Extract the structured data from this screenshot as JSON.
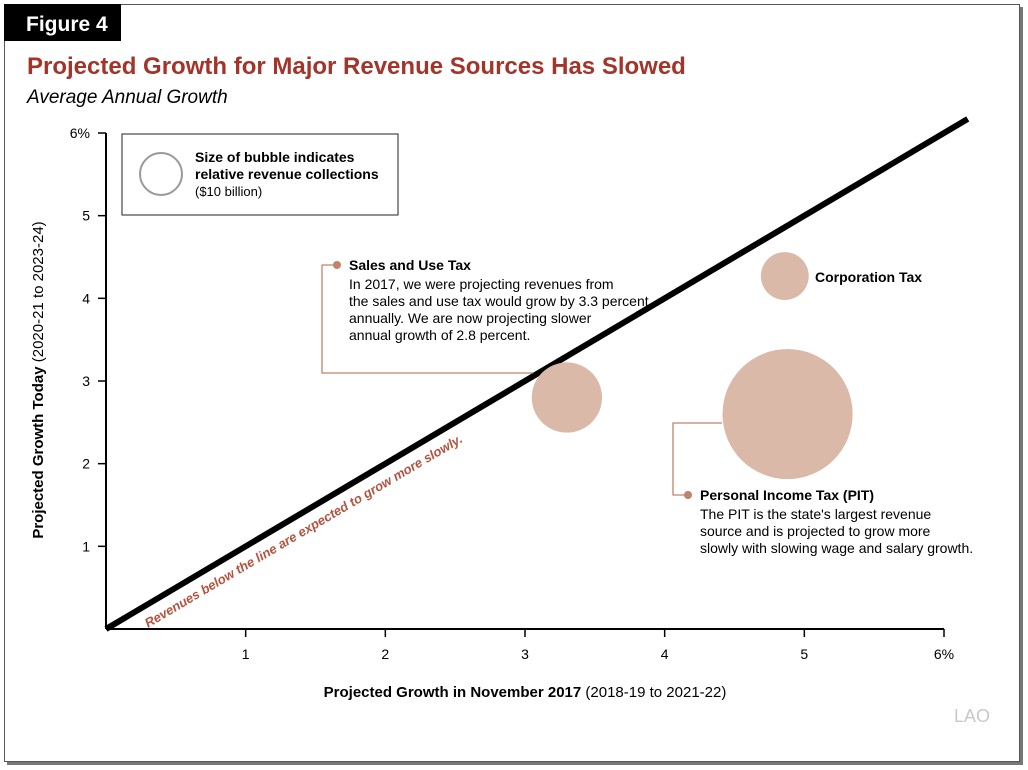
{
  "figure_label": "Figure 4",
  "colors": {
    "title": "#a3342a",
    "bubble": "#dbb9a8",
    "leader": "#c0846a",
    "annotation_text": "#b5533f",
    "line": "#000000"
  },
  "logo_text": "LAO",
  "chart_data": {
    "type": "scatter",
    "title": "Projected Growth for Major Revenue Sources Has Slowed",
    "subtitle": "Average Annual Growth",
    "xlabel": "Projected Growth in November 2017",
    "xlabel_detail": "(2018-19 to 2021-22)",
    "ylabel": "Projected Growth Today",
    "ylabel_detail": "(2020-21 to 2023-24)",
    "xlim": [
      0,
      6
    ],
    "ylim": [
      0,
      6
    ],
    "x_ticks": [
      "1",
      "2",
      "3",
      "4",
      "5",
      "6%"
    ],
    "y_ticks": [
      "1",
      "2",
      "3",
      "4",
      "5",
      "6%"
    ],
    "grid": false,
    "reference_line": {
      "type": "y=x",
      "label": "Revenues below the line are expected to grow more slowly."
    },
    "legend": {
      "placement": "top-left",
      "line1": "Size of bubble indicates",
      "line2": "relative revenue collections",
      "line3": "($10 billion)",
      "reference_size_billions": 10
    },
    "series": [
      {
        "name": "Sales and Use Tax",
        "x": 3.3,
        "y": 2.8,
        "size_billions": 28,
        "note": [
          "In 2017, we were projecting revenues from",
          "the sales and use tax would grow by 3.3 percent",
          "annually. We are now projecting slower",
          "annual growth of 2.8 percent."
        ]
      },
      {
        "name": "Corporation Tax",
        "x": 4.86,
        "y": 4.27,
        "size_billions": 13,
        "note": []
      },
      {
        "name": "Personal Income Tax (PIT)",
        "x": 4.88,
        "y": 2.6,
        "size_billions": 96,
        "note": [
          "The PIT is the state's largest revenue",
          "source and is projected to grow more",
          "slowly with slowing wage and salary growth."
        ]
      }
    ]
  }
}
